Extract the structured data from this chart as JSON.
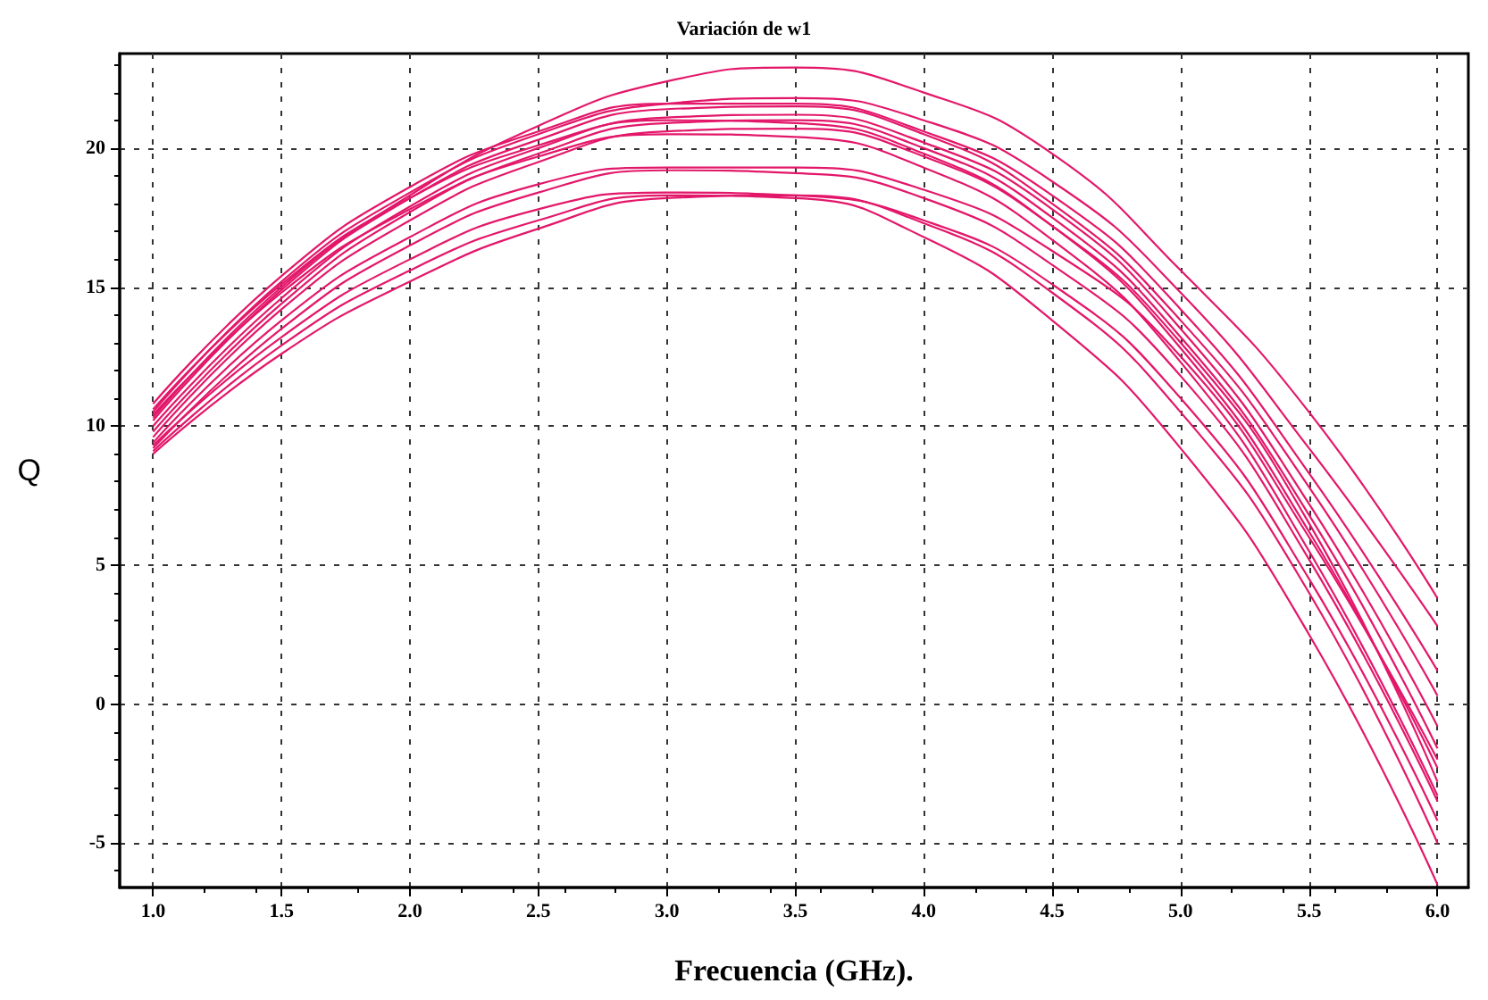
{
  "chart_data": {
    "type": "line",
    "title": "Variación de w1",
    "xlabel": "Frecuencia (GHz).",
    "ylabel": "Q",
    "x": [
      1.0,
      1.5,
      2.0,
      2.5,
      3.0,
      3.5,
      4.0,
      4.5,
      5.0,
      5.5,
      6.0
    ],
    "xlim": [
      0.87,
      6.12
    ],
    "xticks": [
      {
        "value": 1.0,
        "label": "1.0"
      },
      1.5,
      {
        "value": 2.0,
        "label": "2.0"
      },
      2.5,
      {
        "value": 3.0,
        "label": "3.0"
      },
      3.5,
      {
        "value": 4.0,
        "label": "4.0"
      },
      4.5,
      {
        "value": 5.0,
        "label": "5.0"
      },
      5.5,
      {
        "value": 6.0,
        "label": "6.0"
      }
    ],
    "ylim": [
      -6.6,
      23.4
    ],
    "yticks": [
      -5,
      0,
      5,
      10,
      15,
      20
    ],
    "grid": true,
    "marker": "none",
    "series": [
      {
        "color": "#e3176a",
        "values": [
          10.3,
          15.0,
          18.3,
          20.8,
          22.4,
          22.9,
          22.0,
          19.8,
          15.6,
          10.5,
          3.8
        ]
      },
      {
        "color": "#e3176a",
        "values": [
          10.5,
          15.2,
          18.4,
          20.5,
          21.6,
          21.8,
          21.0,
          18.8,
          14.8,
          9.2,
          2.8
        ]
      },
      {
        "color": "#e3176a",
        "values": [
          10.8,
          15.4,
          18.6,
          20.6,
          21.6,
          21.6,
          20.6,
          18.3,
          14.2,
          8.3,
          1.2
        ]
      },
      {
        "color": "#e3176a",
        "values": [
          10.2,
          14.9,
          18.2,
          20.3,
          21.4,
          21.5,
          20.5,
          18.0,
          13.8,
          7.8,
          0.3
        ]
      },
      {
        "color": "#e3176a",
        "values": [
          10.0,
          14.6,
          17.9,
          20.0,
          21.1,
          21.2,
          20.2,
          17.8,
          13.5,
          7.2,
          -0.8
        ]
      },
      {
        "color": "#e3176a",
        "values": [
          9.8,
          14.4,
          17.7,
          19.8,
          20.9,
          21.0,
          20.0,
          17.5,
          13.2,
          6.8,
          -1.6
        ]
      },
      {
        "color": "#e3176a",
        "values": [
          10.6,
          15.1,
          18.2,
          20.1,
          21.0,
          20.9,
          19.8,
          17.2,
          12.8,
          6.2,
          -2.3
        ]
      },
      {
        "color": "#e3176a",
        "values": [
          9.6,
          14.2,
          17.4,
          19.5,
          20.6,
          20.7,
          19.7,
          17.2,
          13.0,
          6.5,
          -2.8
        ]
      },
      {
        "color": "#e3176a",
        "values": [
          10.4,
          14.8,
          17.8,
          19.7,
          20.5,
          20.4,
          19.3,
          16.7,
          12.3,
          5.5,
          -3.3
        ]
      },
      {
        "color": "#e3176a",
        "values": [
          9.4,
          13.8,
          16.8,
          18.7,
          19.3,
          19.3,
          18.5,
          16.3,
          12.5,
          6.0,
          -2.0
        ]
      },
      {
        "color": "#e3176a",
        "values": [
          9.2,
          13.5,
          16.5,
          18.4,
          19.2,
          19.1,
          18.2,
          15.8,
          11.8,
          5.2,
          -3.5
        ]
      },
      {
        "color": "#e3176a",
        "values": [
          9.3,
          13.2,
          16.0,
          17.8,
          18.4,
          18.3,
          17.4,
          15.1,
          11.0,
          4.5,
          -4.2
        ]
      },
      {
        "color": "#e3176a",
        "values": [
          9.0,
          12.6,
          15.2,
          17.1,
          18.2,
          18.3,
          17.3,
          14.8,
          10.5,
          4.0,
          -5.0
        ]
      },
      {
        "color": "#e3176a",
        "values": [
          9.1,
          12.9,
          15.6,
          17.4,
          18.3,
          18.2,
          16.8,
          13.8,
          9.2,
          2.5,
          -6.5
        ]
      }
    ]
  }
}
